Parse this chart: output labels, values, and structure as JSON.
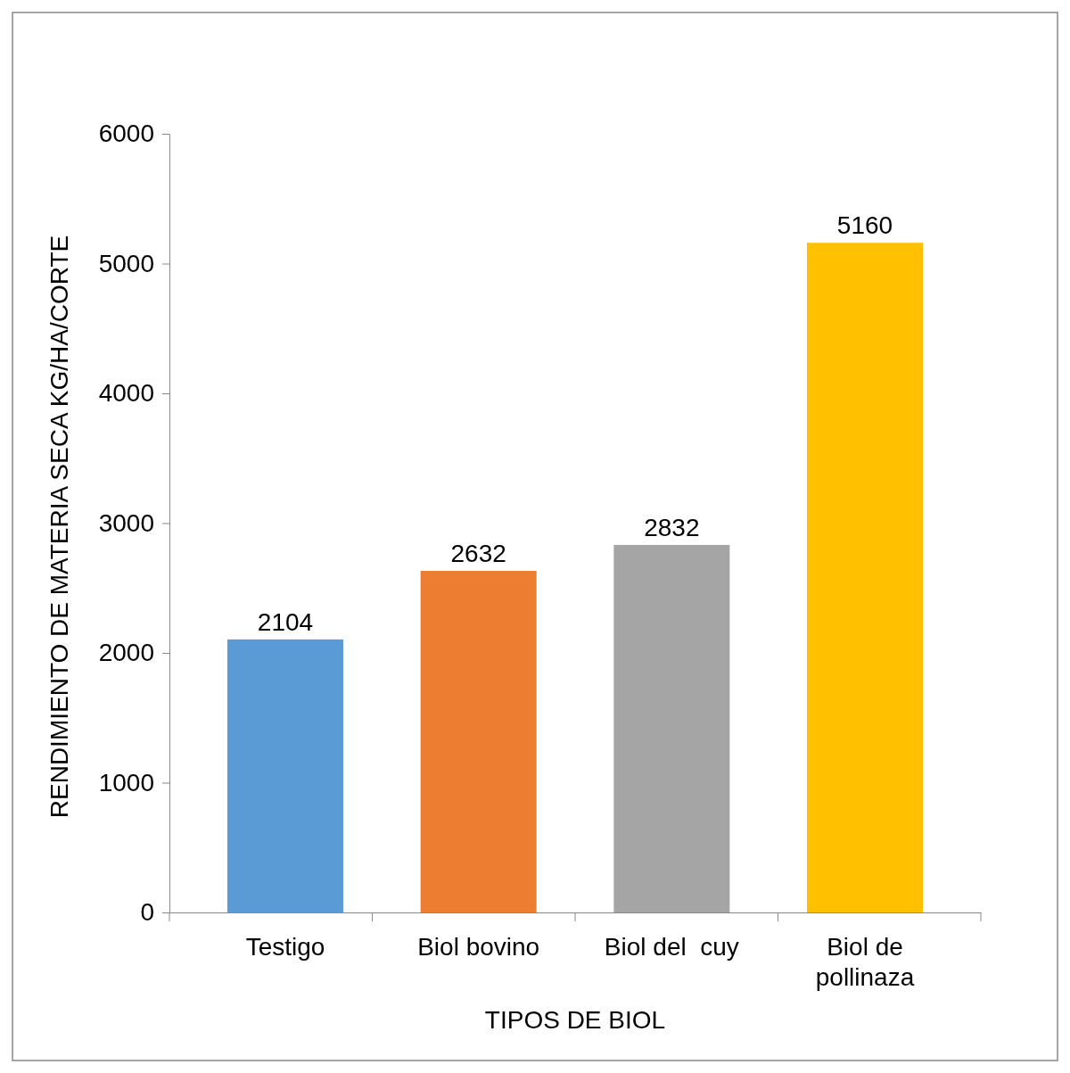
{
  "chart_data": {
    "type": "bar",
    "xlabel": "TIPOS DE BIOL",
    "ylabel": "RENDIMIENTO DE MATERIA SECA KG/HA/CORTE",
    "categories": [
      "Testigo",
      "Biol bovino",
      "Biol del  cuy",
      "Biol de pollinaza"
    ],
    "values": [
      2104,
      2632,
      2832,
      5160
    ],
    "colors": [
      "#5b9bd5",
      "#ed7d31",
      "#a5a5a5",
      "#ffc000"
    ],
    "ylim": [
      0,
      6000
    ],
    "yticks": [
      0,
      1000,
      2000,
      3000,
      4000,
      5000,
      6000
    ],
    "grid": false,
    "data_labels": true
  }
}
